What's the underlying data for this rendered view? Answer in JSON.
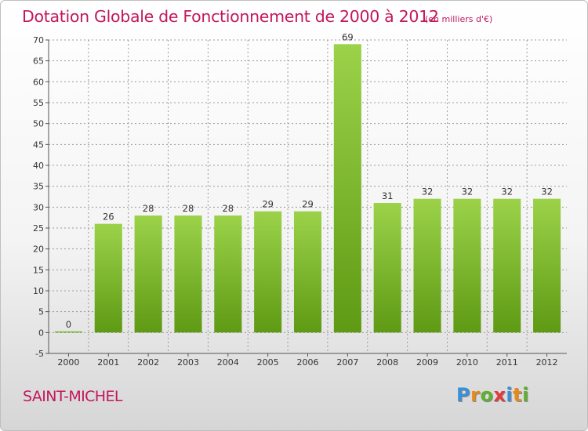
{
  "title": "Dotation Globale de Fonctionnement de 2000 à 2012",
  "subtitle": "(en milliers d'€)",
  "commune": "SAINT-MICHEL",
  "logo": {
    "text": "Proxiti",
    "letter_colors": [
      "#3a8fd6",
      "#e8891a",
      "#5fb02f",
      "#e23b3b",
      "#3a8fd6",
      "#e8891a",
      "#5fb02f"
    ]
  },
  "colors": {
    "title": "#c2185b",
    "bar_light": "#9bd24a",
    "bar_dark": "#5f9a14",
    "grid": "#9a9a9a"
  },
  "chart_data": {
    "type": "bar",
    "title": "Dotation Globale de Fonctionnement de 2000 à 2012",
    "subtitle": "(en milliers d'€)",
    "categories": [
      "2000",
      "2001",
      "2002",
      "2003",
      "2004",
      "2005",
      "2006",
      "2007",
      "2008",
      "2009",
      "2010",
      "2011",
      "2012"
    ],
    "values": [
      0,
      26,
      28,
      28,
      28,
      29,
      29,
      69,
      31,
      32,
      32,
      32,
      32
    ],
    "ylim": [
      -5,
      70
    ],
    "yticks": [
      -5,
      0,
      5,
      10,
      15,
      20,
      25,
      30,
      35,
      40,
      45,
      50,
      55,
      60,
      65,
      70
    ],
    "grid": "horizontal dashed",
    "legend": "none",
    "data_labels": true
  }
}
